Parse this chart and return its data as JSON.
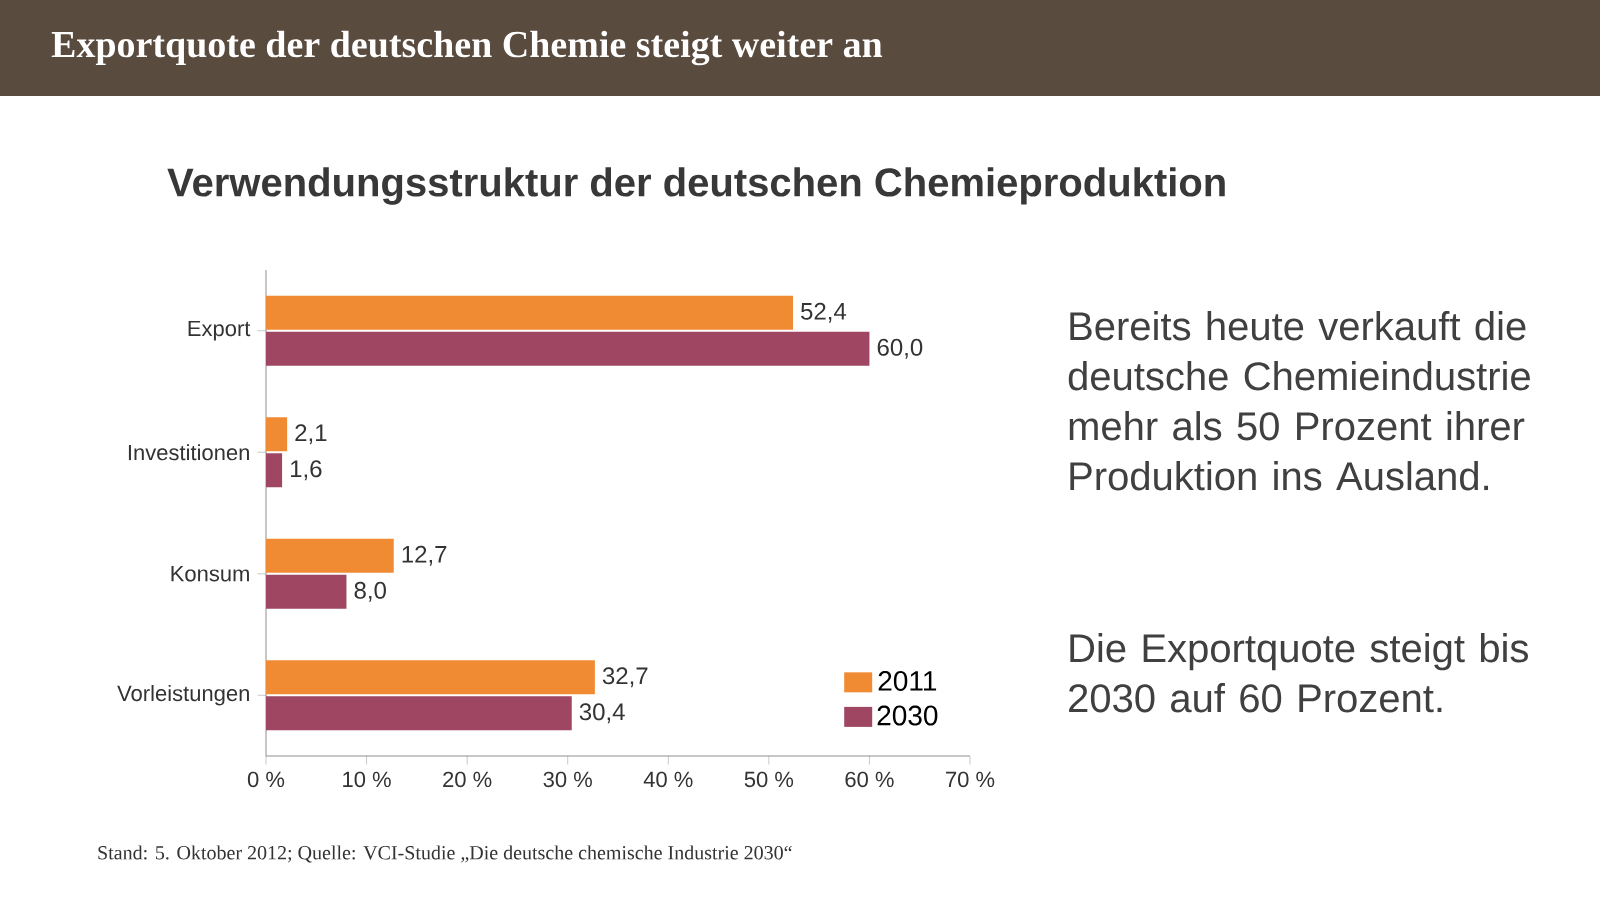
{
  "chart_data": {
    "type": "bar",
    "orientation": "horizontal",
    "title": "Exportquote der deutschen Chemie steigt weiter an",
    "subtitle": "Verwendungsstruktur der deutschen Chemieproduktion",
    "categories": [
      "Export",
      "Investitionen",
      "Konsum",
      "Vorleistungen"
    ],
    "series": [
      {
        "name": "2011",
        "color": "#f08a33",
        "values": [
          52.4,
          2.1,
          12.7,
          32.7
        ],
        "value_labels": [
          "52,4",
          "2,1",
          "12,7",
          "32,7"
        ]
      },
      {
        "name": "2030",
        "color": "#9e4662",
        "values": [
          60.0,
          1.6,
          8.0,
          30.4
        ],
        "value_labels": [
          "60,0",
          "1,6",
          "8,0",
          "30,4"
        ]
      }
    ],
    "xlim": [
      0,
      70
    ],
    "xticks": [
      {
        "value": 0,
        "label": "0 %"
      },
      {
        "value": 10,
        "label": "10 %"
      },
      {
        "value": 20,
        "label": "20 %"
      },
      {
        "value": 30,
        "label": "30 %"
      },
      {
        "value": 40,
        "label": "40 %"
      },
      {
        "value": 50,
        "label": "50 %"
      },
      {
        "value": 60,
        "label": "60 %"
      },
      {
        "value": 70,
        "label": "70 %"
      }
    ],
    "legend": "bottom right",
    "annotations": [
      "Bereits heute verkauft die deutsche Chemieindustrie mehr als 50 Prozent ihrer Produktion ins Ausland.",
      "Die Exportquote steigt bis 2030 auf 60 Prozent.",
      "Stand: 5. Oktober 2012; Quelle: VCI-Studie „Die deutsche chemische Industrie 2030“"
    ]
  }
}
